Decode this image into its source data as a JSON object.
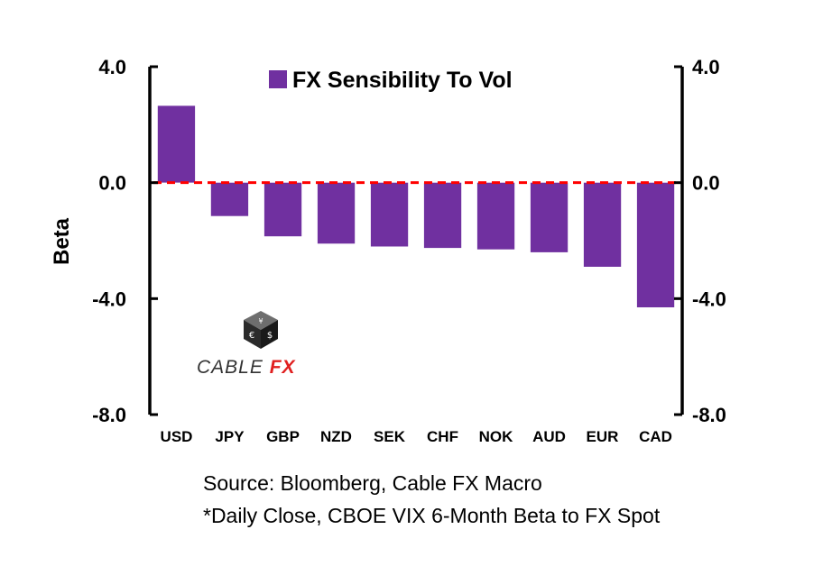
{
  "chart_data": {
    "type": "bar",
    "title": "FX Sensibility To Vol",
    "legend": [
      {
        "name": "FX Sensibility To Vol",
        "color": "#7030A0"
      }
    ],
    "legend_position": "top-center",
    "ylabel": "Beta",
    "xlabel": "",
    "ylim": [
      -8.0,
      4.0
    ],
    "yticks": [
      "4.0",
      "0.0",
      "-4.0",
      "-8.0"
    ],
    "ytick_values": [
      4.0,
      0.0,
      -4.0,
      -8.0
    ],
    "secondary_yticks": [
      "4.0",
      "0.0",
      "-4.0",
      "-8.0"
    ],
    "categories": [
      "USD",
      "JPY",
      "GBP",
      "NZD",
      "SEK",
      "CHF",
      "NOK",
      "AUD",
      "EUR",
      "CAD"
    ],
    "values": [
      2.65,
      -1.15,
      -1.85,
      -2.1,
      -2.2,
      -2.25,
      -2.3,
      -2.4,
      -2.9,
      -4.3
    ],
    "bar_color": "#7030A0",
    "zero_line_color": "#FF0000",
    "grid": false
  },
  "logo": {
    "text_main": "CABLE ",
    "text_accent": "FX",
    "main_color": "#333333",
    "accent_color": "#E02020"
  },
  "footnotes": {
    "source": "Source: Bloomberg, Cable FX Macro",
    "note": "*Daily Close, CBOE VIX 6-Month Beta to FX Spot"
  }
}
